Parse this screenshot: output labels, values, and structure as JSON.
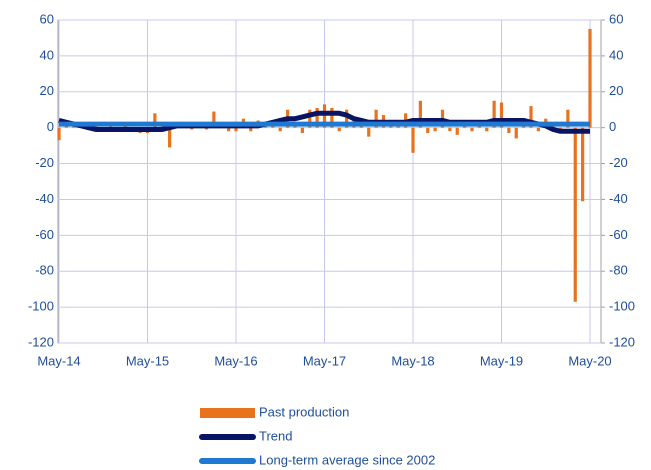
{
  "chart_data": {
    "type": "bar",
    "categories": [
      "May-14",
      null,
      null,
      null,
      null,
      null,
      null,
      null,
      null,
      null,
      null,
      null,
      "May-15",
      null,
      null,
      null,
      null,
      null,
      null,
      null,
      null,
      null,
      null,
      null,
      "May-16",
      null,
      null,
      null,
      null,
      null,
      null,
      null,
      null,
      null,
      null,
      null,
      "May-17",
      null,
      null,
      null,
      null,
      null,
      null,
      null,
      null,
      null,
      null,
      null,
      "May-18",
      null,
      null,
      null,
      null,
      null,
      null,
      null,
      null,
      null,
      null,
      null,
      "May-19",
      null,
      null,
      null,
      null,
      null,
      null,
      null,
      null,
      null,
      null,
      null,
      "May-20"
    ],
    "series": [
      {
        "name": "Past production",
        "type": "bar",
        "color": "#e8731c",
        "values": [
          -7,
          3,
          2,
          1,
          -1,
          1,
          -2,
          1,
          -1,
          2,
          -1,
          -3,
          -3,
          8,
          1,
          -11,
          2,
          1,
          -1,
          2,
          -1,
          9,
          1,
          -2,
          -2,
          5,
          -2,
          4,
          1,
          2,
          -2,
          10,
          2,
          -3,
          10,
          11,
          13,
          11,
          -2,
          10,
          4,
          3,
          -5,
          10,
          7,
          1,
          3,
          8,
          -14,
          15,
          -3,
          -2,
          10,
          -2,
          -4,
          3,
          -2,
          1,
          -2,
          15,
          14,
          -3,
          -6,
          1,
          12,
          -2,
          5,
          1,
          -1,
          10,
          -97,
          -41,
          55
        ]
      },
      {
        "name": "Trend",
        "type": "line",
        "color": "#0a1464",
        "values": [
          4,
          3,
          2,
          1,
          0,
          -1,
          -1,
          -1,
          -1,
          -1,
          -1,
          -1,
          -1,
          -1,
          -1,
          0,
          1,
          1,
          1,
          1,
          1,
          1,
          1,
          1,
          1,
          1,
          1,
          1,
          2,
          3,
          4,
          5,
          5,
          6,
          7,
          8,
          8,
          8,
          8,
          7,
          5,
          4,
          3,
          3,
          3,
          3,
          3,
          3,
          4,
          4,
          4,
          4,
          4,
          3,
          3,
          3,
          3,
          3,
          3,
          4,
          4,
          4,
          4,
          4,
          3,
          2,
          1,
          -1,
          -2,
          -2,
          -2,
          -2,
          -2
        ]
      },
      {
        "name": "Long-term average since 2002",
        "type": "line",
        "color": "#1f78d1",
        "values": [
          2,
          2,
          2,
          2,
          2,
          2,
          2,
          2,
          2,
          2,
          2,
          2,
          2,
          2,
          2,
          2,
          2,
          2,
          2,
          2,
          2,
          2,
          2,
          2,
          2,
          2,
          2,
          2,
          2,
          2,
          2,
          2,
          2,
          2,
          2,
          2,
          2,
          2,
          2,
          2,
          2,
          2,
          2,
          2,
          2,
          2,
          2,
          2,
          2,
          2,
          2,
          2,
          2,
          2,
          2,
          2,
          2,
          2,
          2,
          2,
          2,
          2,
          2,
          2,
          2,
          2,
          2,
          2,
          2,
          2,
          2,
          2,
          2
        ]
      }
    ],
    "ylim": [
      -120,
      60
    ],
    "yticks": [
      -120,
      -100,
      -80,
      -60,
      -40,
      -20,
      0,
      20,
      40,
      60
    ],
    "y2lim": [
      -120,
      60
    ],
    "y2ticks": [
      -120,
      -100,
      -80,
      -60,
      -40,
      -20,
      0,
      20,
      40,
      60
    ],
    "grid": true,
    "legend": "bottom"
  }
}
